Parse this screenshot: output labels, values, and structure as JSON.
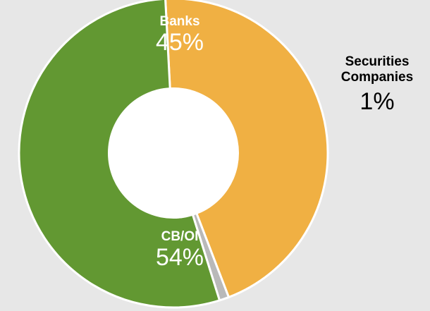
{
  "chart_data": {
    "type": "pie",
    "variant": "donut",
    "slices": [
      {
        "label": "Banks",
        "value": 45,
        "display": "45%",
        "color": "#f0b043"
      },
      {
        "label": "Securities Companies",
        "value": 1,
        "display": "1%",
        "color": "#b9b9b9"
      },
      {
        "label": "CB/OI",
        "value": 54,
        "display": "54%",
        "color": "#629832"
      }
    ],
    "start_angle_deg": 267,
    "direction": "clockwise"
  },
  "labels": {
    "banks_name": "Banks",
    "banks_pct": "45%",
    "cboi_name": "CB/OI",
    "cboi_pct": "54%",
    "sec_name_line1": "Securities",
    "sec_name_line2": "Companies",
    "sec_pct": "1%"
  },
  "colors": {
    "background": "#e7e7e7",
    "separator": "#ffffff"
  }
}
